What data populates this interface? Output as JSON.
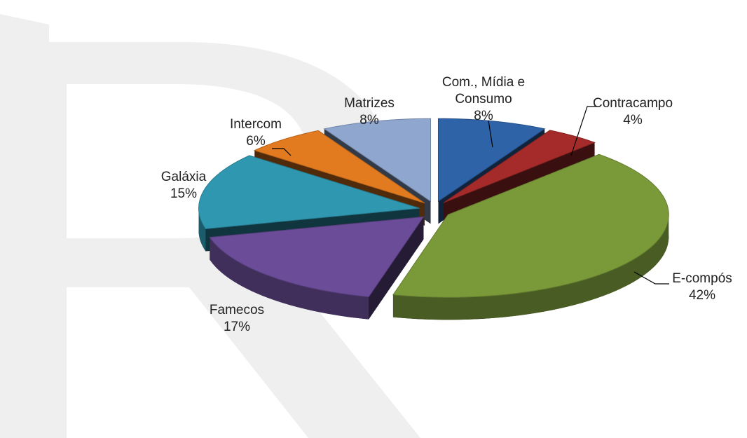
{
  "chart_data": {
    "type": "pie3d",
    "categories": [
      "Com., Mídia e Consumo",
      "Contracampo",
      "E-compós",
      "Famecos",
      "Galáxia",
      "Intercom",
      "Matrizes"
    ],
    "values": [
      8,
      4,
      42,
      17,
      15,
      6,
      8
    ],
    "value_labels": [
      "8%",
      "4%",
      "42%",
      "17%",
      "15%",
      "6%",
      "8%"
    ],
    "colors": [
      "#2f63a8",
      "#a52b2b",
      "#7a9a3a",
      "#6b4c98",
      "#2f97b0",
      "#e27b1f",
      "#8fa6cf"
    ]
  }
}
